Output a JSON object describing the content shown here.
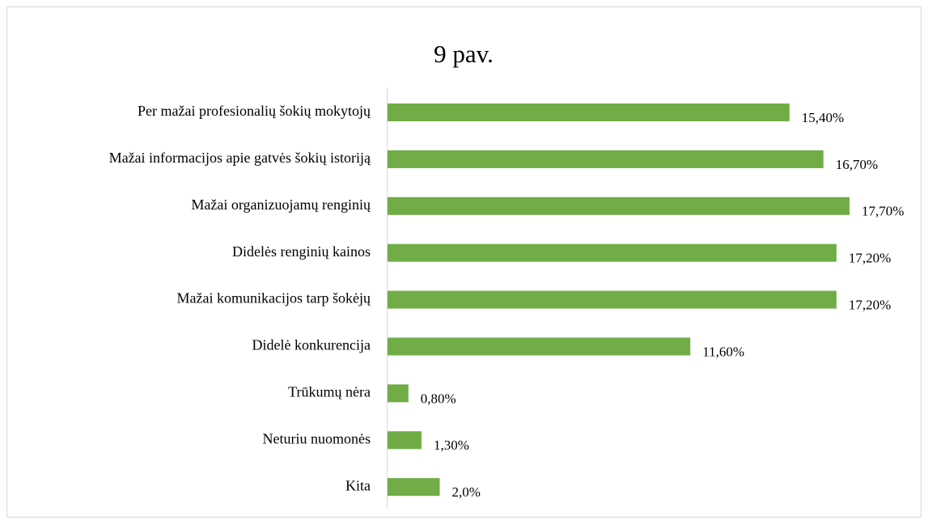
{
  "chart_data": {
    "type": "bar",
    "orientation": "horizontal",
    "title": "9 pav.",
    "categories": [
      "Per mažai profesionalių šokių mokytojų",
      "Mažai informacijos apie gatvės šokių istoriją",
      "Mažai organizuojamų renginių",
      "Didelės renginių kainos",
      "Mažai komunikacijos tarp šokėjų",
      "Didelė konkurencija",
      "Trūkumų nėra",
      "Neturiu nuomonės",
      "Kita"
    ],
    "values": [
      15.4,
      16.7,
      17.7,
      17.2,
      17.2,
      11.6,
      0.8,
      1.3,
      2.0
    ],
    "value_labels": [
      "15,40%",
      "16,70%",
      "17,70%",
      "17,20%",
      "17,20%",
      "11,60%",
      "0,80%",
      "1,30%",
      "2,0%"
    ],
    "color": "#70ad47"
  }
}
